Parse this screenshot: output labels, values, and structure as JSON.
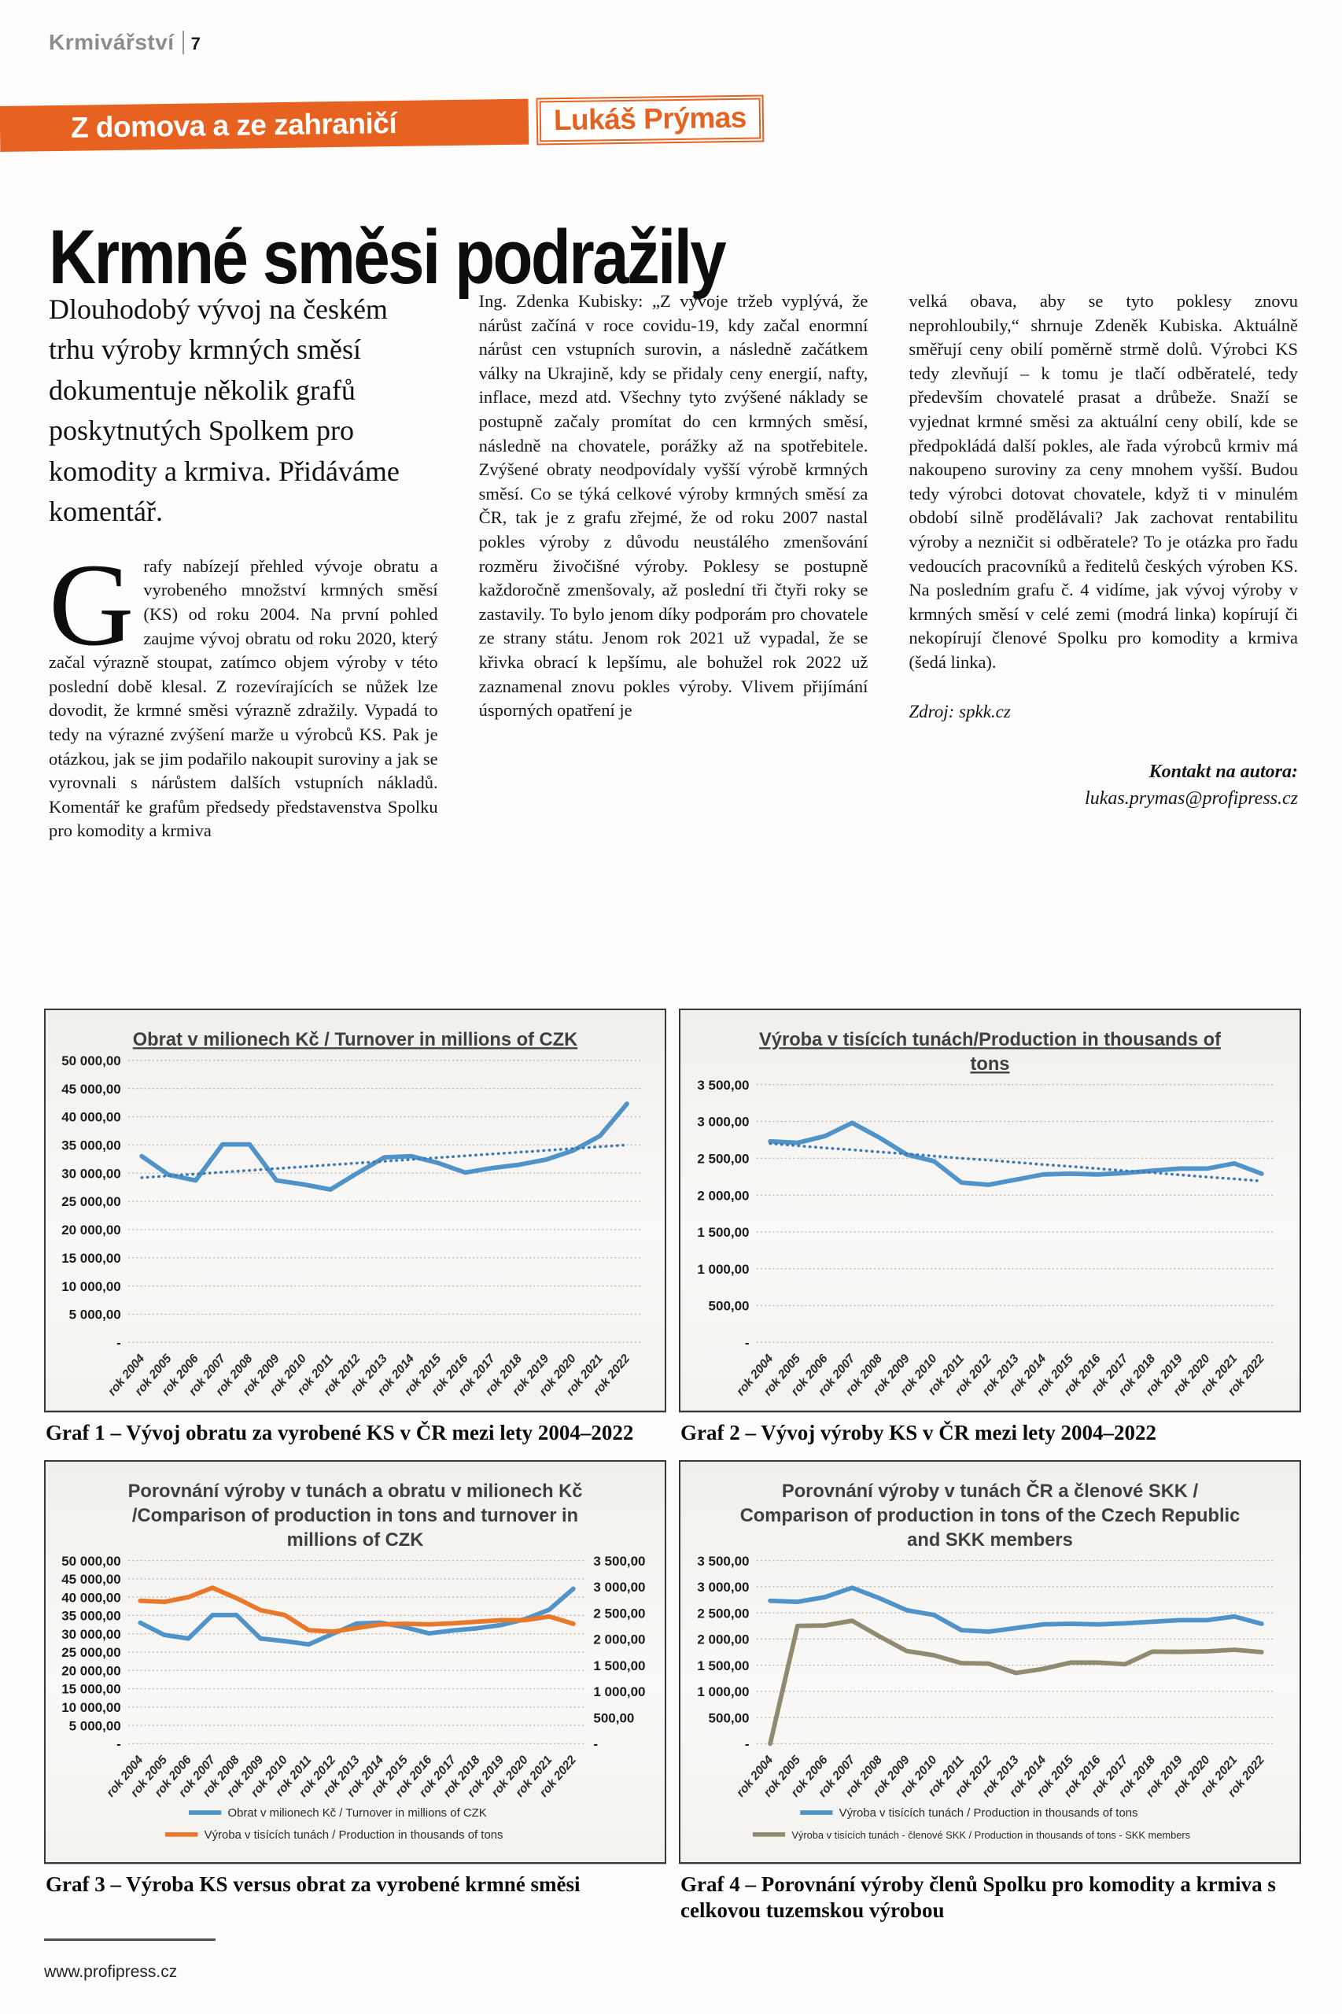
{
  "page": {
    "magazine": "Krmivářství",
    "page_number": "7",
    "section_banner": "Z domova a ze zahraničí",
    "author_badge": "Lukáš Prýmas",
    "headline": "Krmné směsi podražily",
    "lead": "Dlouhodobý vývoj na českém trhu výroby krmných směsí dokumentuje několik grafů poskytnutých Spolkem pro komodity a krmiva. Přidáváme komentář.",
    "dropcap": "G",
    "col1_rest": "rafy nabízejí přehled vývoje obratu a vyrobeného množství krmných směsí (KS) od roku 2004. Na první pohled zaujme vývoj obratu od roku 2020, který začal výrazně stoupat, zatímco objem výroby v této poslední době klesal. Z rozevírajících se nůžek lze dovodit, že krmné směsi výrazně zdražily. Vypadá to tedy na výrazné zvýšení marže u výrobců KS. Pak je otázkou, jak se jim podařilo nakoupit suroviny a jak se vyrovnali s nárůstem dalších vstupních nákladů. Komentář ke grafům předsedy představenstva Spolku pro komodity a krmiva",
    "col2": "Ing. Zdenka Kubisky: „Z vývoje tržeb vyplývá, že nárůst začíná v roce covidu-19, kdy začal enormní nárůst cen vstupních surovin, a následně začátkem války na Ukrajině, kdy se přidaly ceny energií, nafty, inflace, mezd atd. Všechny tyto zvýšené náklady se postupně začaly promítat do cen krmných směsí, následně na chovatele, porážky až na spotřebitele. Zvýšené obraty neodpovídaly vyšší výrobě krmných směsí. Co se týká celkové výroby krmných směsí za ČR, tak je z grafu zřejmé, že od roku 2007 nastal pokles výroby z důvodu neustálého zmenšování rozměru živočišné výroby. Poklesy se postupně každoročně zmenšovaly, až poslední tři čtyři roky se zastavily. To bylo jenom díky podporám pro chovatele ze strany státu. Jenom rok 2021 už vypadal, že se křivka obrací k lepšímu, ale bohužel rok 2022 už zaznamenal znovu pokles výroby. Vlivem přijímání úsporných opatření je",
    "col3": "velká obava, aby se tyto poklesy znovu neprohloubily,“ shrnuje Zdeněk Kubiska. Aktuálně směřují ceny obilí poměrně strmě dolů. Výrobci KS tedy zlevňují – k tomu je tlačí odběratelé, tedy především chovatelé prasat a drůbeže. Snaží se vyjednat krmné směsi za aktuální ceny obilí, kde se předpokládá další pokles, ale řada výrobců krmiv má nakoupeno suroviny za ceny mnohem vyšší. Budou tedy výrobci dotovat chovatele, když ti v minulém období silně prodělávali? Jak zachovat rentabilitu výroby a nezničit si odběratele? To je otázka pro řadu vedoucích pracovníků a ředitelů českých výroben KS. Na posledním grafu č. 4 vidíme, jak vývoj výroby v krmných směsí v celé zemi (modrá linka) kopírují či nekopírují členové Spolku pro komodity a krmiva (šedá linka).",
    "source": "Zdroj: spkk.cz",
    "contact_label": "Kontakt na autora:",
    "contact_email": "lukas.prymas@profipress.cz",
    "footer_url": "www.profipress.cz"
  },
  "colors": {
    "accent_orange": "#e76220",
    "line_blue": "#4f93c8",
    "line_orange": "#e8792a",
    "line_grey": "#8f8a70",
    "trend_blue": "#3d7ab5"
  },
  "chart_data": [
    {
      "type": "line",
      "title": "Obrat v milionech Kč /  Turnover in millions of CZK",
      "title_lines": [
        "Obrat v milionech Kč /  Turnover in millions of CZK"
      ],
      "title_underline": true,
      "caption": "Graf 1 – Vývoj obratu za vyrobené KS v ČR mezi lety 2004–2022",
      "categories": [
        "rok 2004",
        "rok 2005",
        "rok 2006",
        "rok 2007",
        "rok 2008",
        "rok 2009",
        "rok 2010",
        "rok 2011",
        "rok 2012",
        "rok 2013",
        "rok 2014",
        "rok 2015",
        "rok 2016",
        "rok 2017",
        "rok 2018",
        "rok 2019",
        "rok 2020",
        "rok 2021",
        "rok 2022"
      ],
      "left_max": 50000,
      "left_step": 5000,
      "grid": true,
      "legend": [],
      "series": [
        {
          "name": "Obrat v milionech Kč / Turnover in millions of CZK",
          "color": "#4f93c8",
          "style": "solid",
          "axis": "left",
          "values": [
            33000,
            29700,
            28700,
            35100,
            35100,
            28700,
            28000,
            27100,
            30000,
            32800,
            33000,
            31800,
            30100,
            30900,
            31500,
            32400,
            34000,
            36600,
            42300
          ]
        },
        {
          "name": "trend",
          "color": "#3d7ab5",
          "style": "dotted",
          "axis": "left",
          "values": [
            29200,
            29520,
            29840,
            30170,
            30490,
            30810,
            31130,
            31460,
            31780,
            32100,
            32420,
            32740,
            33070,
            33390,
            33710,
            34030,
            34360,
            34680,
            35000
          ]
        }
      ]
    },
    {
      "type": "line",
      "title": "Výroba v tisících tunách/Production in thousands of tons",
      "title_lines": [
        "Výroba v tisících tunách/Production in thousands of",
        "tons"
      ],
      "title_underline": true,
      "caption": "Graf 2 – Vývoj výroby KS v ČR mezi lety 2004–2022",
      "categories": [
        "rok 2004",
        "rok 2005",
        "rok 2006",
        "rok 2007",
        "rok 2008",
        "rok 2009",
        "rok 2010",
        "rok 2011",
        "rok 2012",
        "rok 2013",
        "rok 2014",
        "rok 2015",
        "rok 2016",
        "rok 2017",
        "rok 2018",
        "rok 2019",
        "rok 2020",
        "rok 2021",
        "rok 2022"
      ],
      "left_max": 3500,
      "left_step": 500,
      "grid": true,
      "legend": [],
      "series": [
        {
          "name": "Výroba v tisících tunách / Production in thousands of tons",
          "color": "#4f93c8",
          "style": "solid",
          "axis": "left",
          "values": [
            2730,
            2710,
            2800,
            2980,
            2780,
            2550,
            2460,
            2170,
            2140,
            2210,
            2280,
            2290,
            2280,
            2300,
            2330,
            2360,
            2360,
            2430,
            2290
          ]
        },
        {
          "name": "trend",
          "color": "#3d7ab5",
          "style": "dotted",
          "axis": "left",
          "values": [
            2700,
            2670,
            2640,
            2615,
            2585,
            2560,
            2530,
            2500,
            2475,
            2445,
            2415,
            2390,
            2360,
            2330,
            2305,
            2275,
            2245,
            2220,
            2190
          ]
        }
      ]
    },
    {
      "type": "line",
      "title": "Porovnání výroby v tunách a obratu v milionech Kč /Comparison of production in tons and turnover in millions of CZK",
      "title_lines": [
        "Porovnání výroby v tunách a obratu v milionech Kč",
        "/Comparison of production in tons and turnover in",
        "millions of CZK"
      ],
      "title_underline": false,
      "caption": "Graf 3 – Výroba KS versus obrat za vyrobené krmné směsi",
      "categories": [
        "rok 2004",
        "rok 2005",
        "rok 2006",
        "rok 2007",
        "rok 2008",
        "rok 2009",
        "rok 2010",
        "rok 2011",
        "rok 2012",
        "rok 2013",
        "rok 2014",
        "rok 2015",
        "rok 2016",
        "rok 2017",
        "rok 2018",
        "rok 2019",
        "rok 2020",
        "rok 2021",
        "rok 2022"
      ],
      "left_max": 50000,
      "left_step": 5000,
      "right_max": 3500,
      "right_step": 500,
      "grid": true,
      "legend": [
        {
          "color": "#4f93c8",
          "label": "Obrat v milionech Kč / Turnover in millions of CZK"
        },
        {
          "color": "#e8792a",
          "label": "Výroba v tisících tunách / Production in thousands of tons"
        }
      ],
      "series": [
        {
          "name": "Obrat v milionech Kč / Turnover in millions of CZK",
          "color": "#4f93c8",
          "style": "solid",
          "axis": "left",
          "values": [
            33000,
            29700,
            28700,
            35100,
            35100,
            28700,
            28000,
            27100,
            30000,
            32800,
            33000,
            31800,
            30100,
            30900,
            31500,
            32400,
            34000,
            36600,
            42300
          ]
        },
        {
          "name": "Výroba v tisících tunách / Production in thousands of tons",
          "color": "#e8792a",
          "style": "solid",
          "axis": "right",
          "values": [
            2730,
            2710,
            2800,
            2980,
            2780,
            2550,
            2460,
            2170,
            2140,
            2210,
            2280,
            2290,
            2280,
            2300,
            2330,
            2360,
            2360,
            2430,
            2290
          ]
        }
      ]
    },
    {
      "type": "line",
      "title": "Porovnání výroby v tunách ČR a členové SKK / Comparison of production in tons of the Czech Republic and SKK members",
      "title_lines": [
        "Porovnání výroby v tunách ČR a členové SKK /",
        "Comparison of production in tons of the Czech Republic",
        "and SKK members"
      ],
      "title_underline": false,
      "caption": "Graf 4 – Porovnání výroby členů Spolku pro komodity a krmiva s celkovou tuzemskou výrobou",
      "categories": [
        "rok 2004",
        "rok 2005",
        "rok 2006",
        "rok 2007",
        "rok 2008",
        "rok 2009",
        "rok 2010",
        "rok 2011",
        "rok 2012",
        "rok 2013",
        "rok 2014",
        "rok 2015",
        "rok 2016",
        "rok 2017",
        "rok 2018",
        "rok 2019",
        "rok 2020",
        "rok 2021",
        "rok 2022"
      ],
      "left_max": 3500,
      "left_step": 500,
      "grid": true,
      "legend": [
        {
          "color": "#4f93c8",
          "label": "Výroba v tisících tunách / Production in thousands of tons"
        },
        {
          "color": "#8f8a70",
          "label": "Výroba v tisících tunách - členové SKK / Production in thousands of tons - SKK members"
        }
      ],
      "series": [
        {
          "name": "Výroba v tisících tunách / Production in thousands of tons",
          "color": "#4f93c8",
          "style": "solid",
          "axis": "left",
          "values": [
            2730,
            2710,
            2800,
            2980,
            2780,
            2550,
            2460,
            2170,
            2140,
            2210,
            2280,
            2290,
            2280,
            2300,
            2330,
            2360,
            2360,
            2430,
            2290
          ]
        },
        {
          "name": "Výroba v tisících tunách - členové SKK / Production in thousands of tons - SKK members",
          "color": "#8f8a70",
          "style": "solid",
          "axis": "left",
          "values": [
            0,
            2250,
            2260,
            2350,
            2050,
            1770,
            1690,
            1540,
            1530,
            1350,
            1430,
            1550,
            1550,
            1520,
            1760,
            1755,
            1765,
            1795,
            1750
          ]
        }
      ]
    }
  ]
}
